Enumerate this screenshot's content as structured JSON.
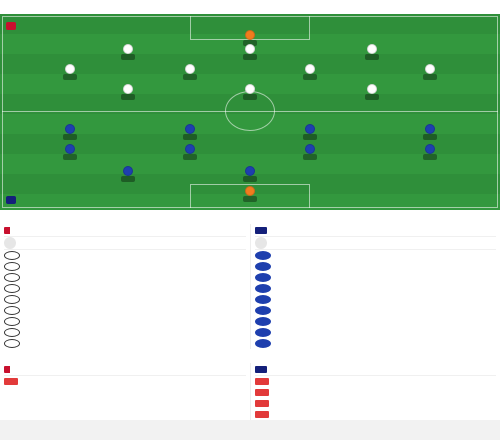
{
  "lineup": {
    "title": "",
    "subtitle": "",
    "home_team": "",
    "home_formation": "",
    "away_team": "",
    "away_formation": "",
    "stats": [
      {
        "text": ""
      },
      {
        "text": ""
      },
      {
        "text": ""
      },
      {
        "text": ""
      }
    ],
    "home_players": [
      {
        "name": "",
        "rating": "",
        "gk": true
      },
      {
        "name": "",
        "rating": ""
      },
      {
        "name": "",
        "rating": ""
      },
      {
        "name": "",
        "rating": ""
      },
      {
        "name": "",
        "rating": ""
      },
      {
        "name": "",
        "rating": ""
      },
      {
        "name": "",
        "rating": ""
      },
      {
        "name": "",
        "rating": ""
      },
      {
        "name": "",
        "rating": ""
      },
      {
        "name": "",
        "rating": ""
      },
      {
        "name": "",
        "rating": ""
      }
    ],
    "away_players": [
      {
        "name": "",
        "rating": ""
      },
      {
        "name": "",
        "rating": ""
      },
      {
        "name": "",
        "rating": ""
      },
      {
        "name": "",
        "rating": ""
      },
      {
        "name": "",
        "rating": ""
      },
      {
        "name": "",
        "rating": ""
      },
      {
        "name": "",
        "rating": ""
      },
      {
        "name": "",
        "rating": ""
      },
      {
        "name": "",
        "rating": ""
      },
      {
        "name": "",
        "rating": ""
      },
      {
        "name": "",
        "rating": "",
        "gk": true
      }
    ]
  },
  "bench": {
    "title": "",
    "home": {
      "team": "",
      "coach_name": "",
      "coach_role": "",
      "subs": [
        {
          "name": "",
          "pos": "",
          "time": ""
        },
        {
          "name": "",
          "pos": "",
          "time": ""
        },
        {
          "name": "",
          "pos": "",
          "time": ""
        },
        {
          "name": "",
          "pos": "",
          "time": ""
        },
        {
          "name": "",
          "pos": "",
          "time": ""
        },
        {
          "name": "",
          "pos": "",
          "time": ""
        },
        {
          "name": "",
          "pos": "",
          "time": ""
        },
        {
          "name": "",
          "pos": "",
          "time": ""
        },
        {
          "name": "",
          "pos": "",
          "time": ""
        }
      ]
    },
    "away": {
      "team": "",
      "coach_name": "",
      "coach_role": "",
      "subs": [
        {
          "name": "",
          "pos": "",
          "time": ""
        },
        {
          "name": "",
          "pos": "",
          "time": ""
        },
        {
          "name": "",
          "pos": "",
          "time": ""
        },
        {
          "name": "",
          "pos": "",
          "time": ""
        },
        {
          "name": "",
          "pos": "",
          "time": ""
        },
        {
          "name": "",
          "pos": "",
          "time": ""
        },
        {
          "name": "",
          "pos": "",
          "time": ""
        },
        {
          "name": "",
          "pos": "",
          "time": ""
        },
        {
          "name": "",
          "pos": "",
          "time": ""
        }
      ]
    }
  },
  "injuries": {
    "title": "",
    "home": {
      "team": "",
      "items": [
        {
          "name": "",
          "reason": ""
        }
      ]
    },
    "away": {
      "team": "",
      "items": [
        {
          "name": "",
          "reason": ""
        },
        {
          "name": "",
          "reason": ""
        },
        {
          "name": "",
          "reason": ""
        },
        {
          "name": "",
          "reason": ""
        }
      ]
    }
  },
  "colors": {
    "pitch": "#2f8f3a",
    "home_shirt": "#ffffff",
    "away_shirt": "#1e3fae",
    "goalkeeper": "#f07c1e",
    "sub_time": "#3aa34a"
  },
  "icons": {
    "home_crest": "red-crest-icon",
    "away_crest": "navy-crest-icon",
    "home_flag": "red-white-flag-icon",
    "away_flag": "navy-flag-icon"
  }
}
